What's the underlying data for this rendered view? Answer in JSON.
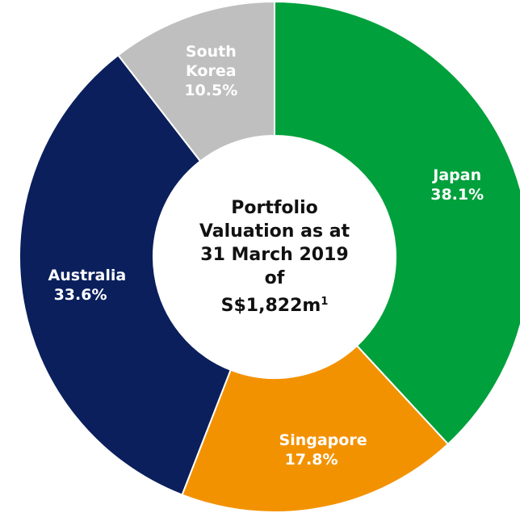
{
  "chart_data": {
    "type": "donut",
    "categories": [
      "Japan",
      "Singapore",
      "Australia",
      "South Korea"
    ],
    "values": [
      38.1,
      17.8,
      33.6,
      10.5
    ],
    "value_labels": [
      "38.1%",
      "17.8%",
      "33.6%",
      "10.5%"
    ],
    "colors": [
      "#00a03c",
      "#f39200",
      "#0a1f5c",
      "#bfbfbf"
    ],
    "center_text": [
      "Portfolio",
      "Valuation as at",
      "31 March 2019",
      "of",
      "S$1,822m"
    ],
    "center_footnote_marker": "1"
  }
}
